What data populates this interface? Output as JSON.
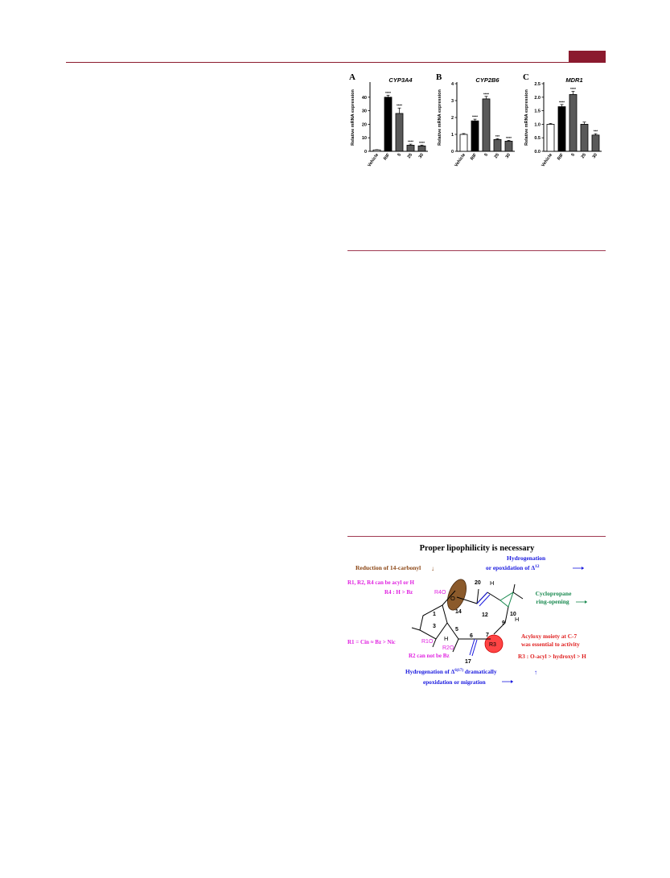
{
  "colors": {
    "accent": "#8b1a2e",
    "bar_vehicle": "#ffffff",
    "bar_rif": "#000000",
    "bar_compound": "#595959"
  },
  "charts": [
    {
      "panel_letter": "A",
      "chart_data": {
        "type": "bar",
        "title": "CYP3A4",
        "ylabel": "Relative mRNA expression",
        "categories": [
          "Vehicle",
          "RIF",
          "5",
          "25",
          "30"
        ],
        "values": [
          1,
          40,
          28,
          4.5,
          4
        ],
        "ylim": [
          0,
          50
        ],
        "yticks": [
          0,
          10,
          20,
          30,
          40
        ],
        "error": [
          0.2,
          1.5,
          4,
          0.8,
          0.6
        ],
        "significance": [
          "",
          "****",
          "****",
          "****",
          "****"
        ]
      }
    },
    {
      "panel_letter": "B",
      "chart_data": {
        "type": "bar",
        "title": "CYP2B6",
        "ylabel": "Relative mRNA expression",
        "categories": [
          "Vehicle",
          "RIF",
          "5",
          "25",
          "30"
        ],
        "values": [
          1,
          1.8,
          3.1,
          0.7,
          0.6
        ],
        "ylim": [
          0,
          4
        ],
        "yticks": [
          0,
          1,
          2,
          3,
          4
        ],
        "error": [
          0.05,
          0.1,
          0.15,
          0.05,
          0.05
        ],
        "significance": [
          "",
          "****",
          "****",
          "***",
          "****"
        ]
      }
    },
    {
      "panel_letter": "C",
      "chart_data": {
        "type": "bar",
        "title": "MDR1",
        "ylabel": "Relative mRNA expression",
        "categories": [
          "Vehicle",
          "RIF",
          "5",
          "25",
          "30"
        ],
        "values": [
          1.0,
          1.65,
          2.1,
          1.0,
          0.6
        ],
        "ylim": [
          0,
          2.5
        ],
        "yticks": [
          0.0,
          0.5,
          1.0,
          1.5,
          2.0,
          2.5
        ],
        "error": [
          0.03,
          0.08,
          0.12,
          0.08,
          0.05
        ],
        "significance": [
          "",
          "****",
          "****",
          "",
          "***"
        ]
      }
    }
  ],
  "sar": {
    "title": "Proper lipophilicity is necessary",
    "reduction": "Reduction of 14-carbonyl",
    "hydrogenation_1": "Hydrogenation",
    "hydrogenation_2": "or epoxidation of Δ",
    "hydrogenation_sup": "12",
    "r_acyl": "R1, R2, R4 can be acyl or H",
    "r4": "R4 : H > Bz",
    "cyclopropane_1": "Cyclopropane",
    "cyclopropane_2": "ring-opening",
    "r1_order": "R1 = Cin ≈ Bz > Nic",
    "acyloxy_1": "Acyloxy moiety at C-7",
    "acyloxy_2": "was essential to activity",
    "r3_order": "R3 : O-acyl > hydroxyl > H",
    "r2_not": "R2 can not be Bz",
    "hydro_617_a": "Hydrogenation of Δ",
    "hydro_617_sup": "6(17)",
    "hydro_617_b": " dramatically",
    "epox_migr": "epoxidation or migration",
    "atoms": {
      "n20": "20",
      "n14": "14",
      "n12": "12",
      "n10": "10",
      "n9": "9",
      "n1": "1",
      "n3": "3",
      "n5": "5",
      "n6": "6",
      "n7": "7",
      "n17": "17",
      "O": "O",
      "H1": "H",
      "H2": "H",
      "H3": "H",
      "r4o": "R4O",
      "r1o": "R1O",
      "r2o": "R2O",
      "r3": "R3"
    }
  }
}
